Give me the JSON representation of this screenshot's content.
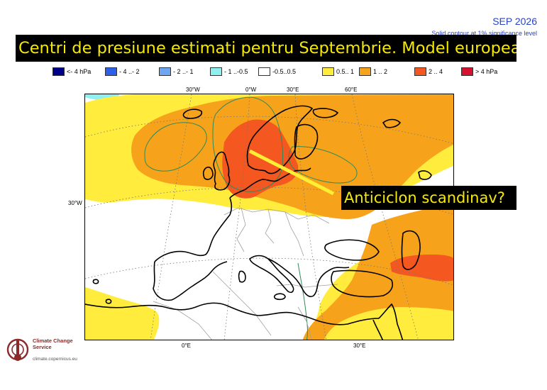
{
  "header": {
    "month": "SEP 2026",
    "note": "Solid contour at 1% significance level"
  },
  "title": "Centri de presiune estimati pentru Septembrie. Model european",
  "legend": {
    "items": [
      {
        "label": "<- 4 hPa",
        "color": "#00008b"
      },
      {
        "label": "- 4 ..- 2",
        "color": "#2e5fe8"
      },
      {
        "label": "- 2 ..- 1",
        "color": "#6ea6f2"
      },
      {
        "label": "- 1 ..-0.5",
        "color": "#8ff0f0"
      },
      {
        "label": "-0.5..0.5",
        "color": "#ffffff"
      },
      {
        "label": "0.5.. 1",
        "color": "#ffec3d"
      },
      {
        "label": "1 .. 2",
        "color": "#f7a21b"
      },
      {
        "label": "2 .. 4",
        "color": "#f4571f"
      },
      {
        "label": ">  4 hPa",
        "color": "#d6102f"
      }
    ]
  },
  "map": {
    "anomaly_colors": {
      "slight_positive": "#ffec3d",
      "positive": "#f7a21b",
      "strong_positive": "#f4571f",
      "neutral": "#ffffff",
      "slight_negative": "#8ff0f0"
    },
    "axis_labels": {
      "top_30w": "30°W",
      "top_0w": "0°W",
      "top_30e": "30°E",
      "top_60e": "60°E",
      "left_30w": "30°W",
      "bottom_0e": "0°E",
      "bottom_30e": "30°E"
    },
    "contour_color": "#2e8b57",
    "coastline_color": "#000000",
    "border_color": "#a0a0a0",
    "annotation_line_color": "#ffee33"
  },
  "callout": "Anticiclon scandinav?",
  "logo": {
    "name": "Climate Change Service",
    "url": "climate.copernicus.eu",
    "icon": "copernicus-logo-icon"
  }
}
